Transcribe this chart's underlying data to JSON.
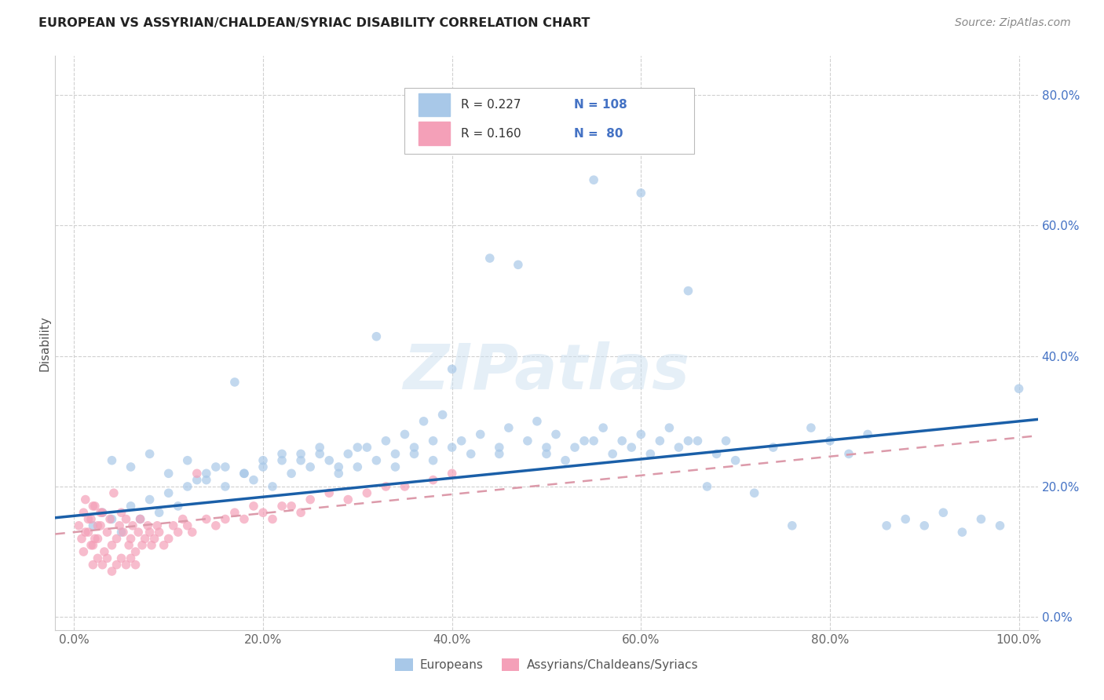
{
  "title": "EUROPEAN VS ASSYRIAN/CHALDEAN/SYRIAC DISABILITY CORRELATION CHART",
  "source": "Source: ZipAtlas.com",
  "ylabel": "Disability",
  "legend_label1": "Europeans",
  "legend_label2": "Assyrians/Chaldeans/Syriacs",
  "R1": 0.227,
  "N1": 108,
  "R2": 0.16,
  "N2": 80,
  "blue_color": "#a8c8e8",
  "pink_color": "#f4a0b8",
  "line_blue": "#1a5fa8",
  "line_pink_r": 220,
  "line_pink_g": 150,
  "line_pink_b": 170,
  "background": "#ffffff",
  "grid_color": "#d0d0d0",
  "blue_scatter_x": [
    0.02,
    0.03,
    0.04,
    0.05,
    0.06,
    0.07,
    0.08,
    0.09,
    0.1,
    0.11,
    0.12,
    0.13,
    0.14,
    0.15,
    0.16,
    0.17,
    0.18,
    0.19,
    0.2,
    0.21,
    0.22,
    0.23,
    0.24,
    0.25,
    0.26,
    0.27,
    0.28,
    0.29,
    0.3,
    0.31,
    0.32,
    0.33,
    0.34,
    0.35,
    0.36,
    0.37,
    0.38,
    0.39,
    0.4,
    0.41,
    0.42,
    0.43,
    0.44,
    0.45,
    0.46,
    0.47,
    0.48,
    0.49,
    0.5,
    0.51,
    0.52,
    0.53,
    0.54,
    0.55,
    0.56,
    0.57,
    0.58,
    0.59,
    0.6,
    0.61,
    0.62,
    0.63,
    0.64,
    0.65,
    0.66,
    0.67,
    0.68,
    0.69,
    0.7,
    0.72,
    0.74,
    0.76,
    0.78,
    0.8,
    0.82,
    0.84,
    0.86,
    0.88,
    0.9,
    0.92,
    0.94,
    0.96,
    0.98,
    1.0,
    0.04,
    0.06,
    0.08,
    0.1,
    0.12,
    0.14,
    0.16,
    0.18,
    0.2,
    0.22,
    0.24,
    0.26,
    0.28,
    0.3,
    0.32,
    0.34,
    0.36,
    0.38,
    0.4,
    0.45,
    0.5,
    0.55,
    0.6,
    0.65
  ],
  "blue_scatter_y": [
    0.14,
    0.16,
    0.15,
    0.13,
    0.17,
    0.15,
    0.18,
    0.16,
    0.19,
    0.17,
    0.2,
    0.21,
    0.22,
    0.23,
    0.2,
    0.36,
    0.22,
    0.21,
    0.23,
    0.2,
    0.24,
    0.22,
    0.25,
    0.23,
    0.26,
    0.24,
    0.22,
    0.25,
    0.23,
    0.26,
    0.43,
    0.27,
    0.25,
    0.28,
    0.26,
    0.3,
    0.27,
    0.31,
    0.38,
    0.27,
    0.25,
    0.28,
    0.55,
    0.26,
    0.29,
    0.54,
    0.27,
    0.3,
    0.25,
    0.28,
    0.24,
    0.26,
    0.27,
    0.67,
    0.29,
    0.25,
    0.27,
    0.26,
    0.65,
    0.25,
    0.27,
    0.29,
    0.26,
    0.5,
    0.27,
    0.2,
    0.25,
    0.27,
    0.24,
    0.19,
    0.26,
    0.14,
    0.29,
    0.27,
    0.25,
    0.28,
    0.14,
    0.15,
    0.14,
    0.16,
    0.13,
    0.15,
    0.14,
    0.35,
    0.24,
    0.23,
    0.25,
    0.22,
    0.24,
    0.21,
    0.23,
    0.22,
    0.24,
    0.25,
    0.24,
    0.25,
    0.23,
    0.26,
    0.24,
    0.23,
    0.25,
    0.24,
    0.26,
    0.25,
    0.26,
    0.27,
    0.28,
    0.27
  ],
  "pink_scatter_x": [
    0.005,
    0.008,
    0.01,
    0.012,
    0.015,
    0.018,
    0.02,
    0.022,
    0.025,
    0.028,
    0.01,
    0.012,
    0.015,
    0.018,
    0.02,
    0.022,
    0.025,
    0.028,
    0.03,
    0.032,
    0.035,
    0.038,
    0.04,
    0.042,
    0.045,
    0.048,
    0.05,
    0.052,
    0.055,
    0.058,
    0.06,
    0.062,
    0.065,
    0.068,
    0.07,
    0.072,
    0.075,
    0.078,
    0.08,
    0.082,
    0.085,
    0.088,
    0.09,
    0.095,
    0.1,
    0.105,
    0.11,
    0.115,
    0.12,
    0.125,
    0.13,
    0.14,
    0.15,
    0.16,
    0.17,
    0.18,
    0.19,
    0.2,
    0.21,
    0.22,
    0.23,
    0.24,
    0.25,
    0.27,
    0.29,
    0.31,
    0.33,
    0.35,
    0.38,
    0.4,
    0.02,
    0.025,
    0.03,
    0.035,
    0.04,
    0.045,
    0.05,
    0.055,
    0.06,
    0.065
  ],
  "pink_scatter_y": [
    0.14,
    0.12,
    0.16,
    0.13,
    0.15,
    0.11,
    0.17,
    0.12,
    0.14,
    0.16,
    0.1,
    0.18,
    0.13,
    0.15,
    0.11,
    0.17,
    0.12,
    0.14,
    0.16,
    0.1,
    0.13,
    0.15,
    0.11,
    0.19,
    0.12,
    0.14,
    0.16,
    0.13,
    0.15,
    0.11,
    0.12,
    0.14,
    0.1,
    0.13,
    0.15,
    0.11,
    0.12,
    0.14,
    0.13,
    0.11,
    0.12,
    0.14,
    0.13,
    0.11,
    0.12,
    0.14,
    0.13,
    0.15,
    0.14,
    0.13,
    0.22,
    0.15,
    0.14,
    0.15,
    0.16,
    0.15,
    0.17,
    0.16,
    0.15,
    0.17,
    0.17,
    0.16,
    0.18,
    0.19,
    0.18,
    0.19,
    0.2,
    0.2,
    0.21,
    0.22,
    0.08,
    0.09,
    0.08,
    0.09,
    0.07,
    0.08,
    0.09,
    0.08,
    0.09,
    0.08
  ],
  "xlim": [
    -0.02,
    1.02
  ],
  "ylim": [
    -0.02,
    0.86
  ],
  "xticks": [
    0.0,
    0.2,
    0.4,
    0.6,
    0.8,
    1.0
  ],
  "yticks": [
    0.0,
    0.2,
    0.4,
    0.6,
    0.8
  ],
  "xticklabels": [
    "0.0%",
    "20.0%",
    "40.0%",
    "60.0%",
    "80.0%",
    "100.0%"
  ],
  "yticklabels_right": [
    "0.0%",
    "20.0%",
    "40.0%",
    "60.0%",
    "80.0%"
  ],
  "watermark": "ZIPatlas",
  "marker_size": 70
}
